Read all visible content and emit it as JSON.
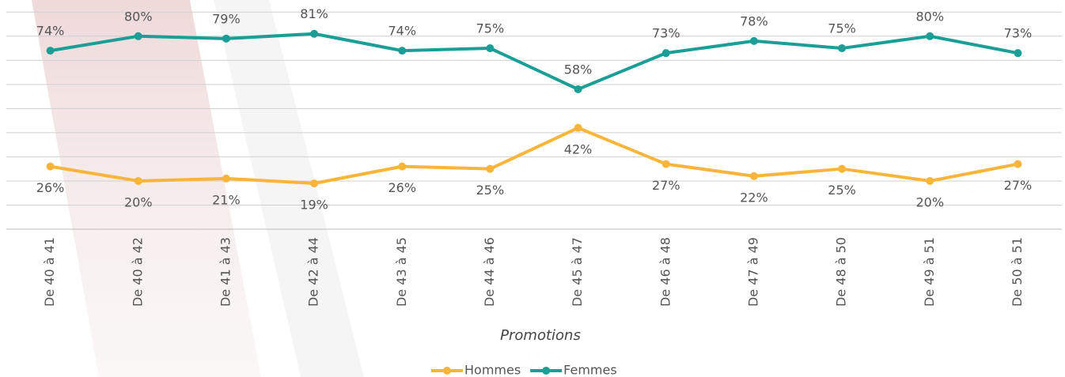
{
  "chart_data": {
    "type": "line",
    "x_label": "Promotions",
    "categories": [
      "De 40 à 41",
      "De 40 à 42",
      "De 41 à 43",
      "De 42 à 44",
      "De 43 à 45",
      "De 44 à 46",
      "De 45 à 47",
      "De 46 à 48",
      "De 47 à 49",
      "De 48 à 50",
      "De 49 à 51",
      "De 50 à 51"
    ],
    "series": [
      {
        "name": "Hommes",
        "color": "#f9b43a",
        "values": [
          26,
          20,
          21,
          19,
          26,
          25,
          42,
          27,
          22,
          25,
          20,
          27
        ],
        "value_labels": [
          "26%",
          "20%",
          "21%",
          "19%",
          "26%",
          "25%",
          "42%",
          "27%",
          "22%",
          "25%",
          "20%",
          "27%"
        ]
      },
      {
        "name": "Femmes",
        "color": "#1a9e96",
        "values": [
          74,
          80,
          79,
          81,
          74,
          75,
          58,
          73,
          78,
          75,
          80,
          73
        ],
        "value_labels": [
          "74%",
          "80%",
          "79%",
          "81%",
          "74%",
          "75%",
          "58%",
          "73%",
          "78%",
          "75%",
          "80%",
          "73%"
        ]
      }
    ],
    "ylim": [
      0,
      95
    ],
    "yticks": [
      0,
      10,
      20,
      30,
      40,
      50,
      60,
      70,
      80,
      90
    ],
    "grid": true,
    "legend": "bottom"
  }
}
